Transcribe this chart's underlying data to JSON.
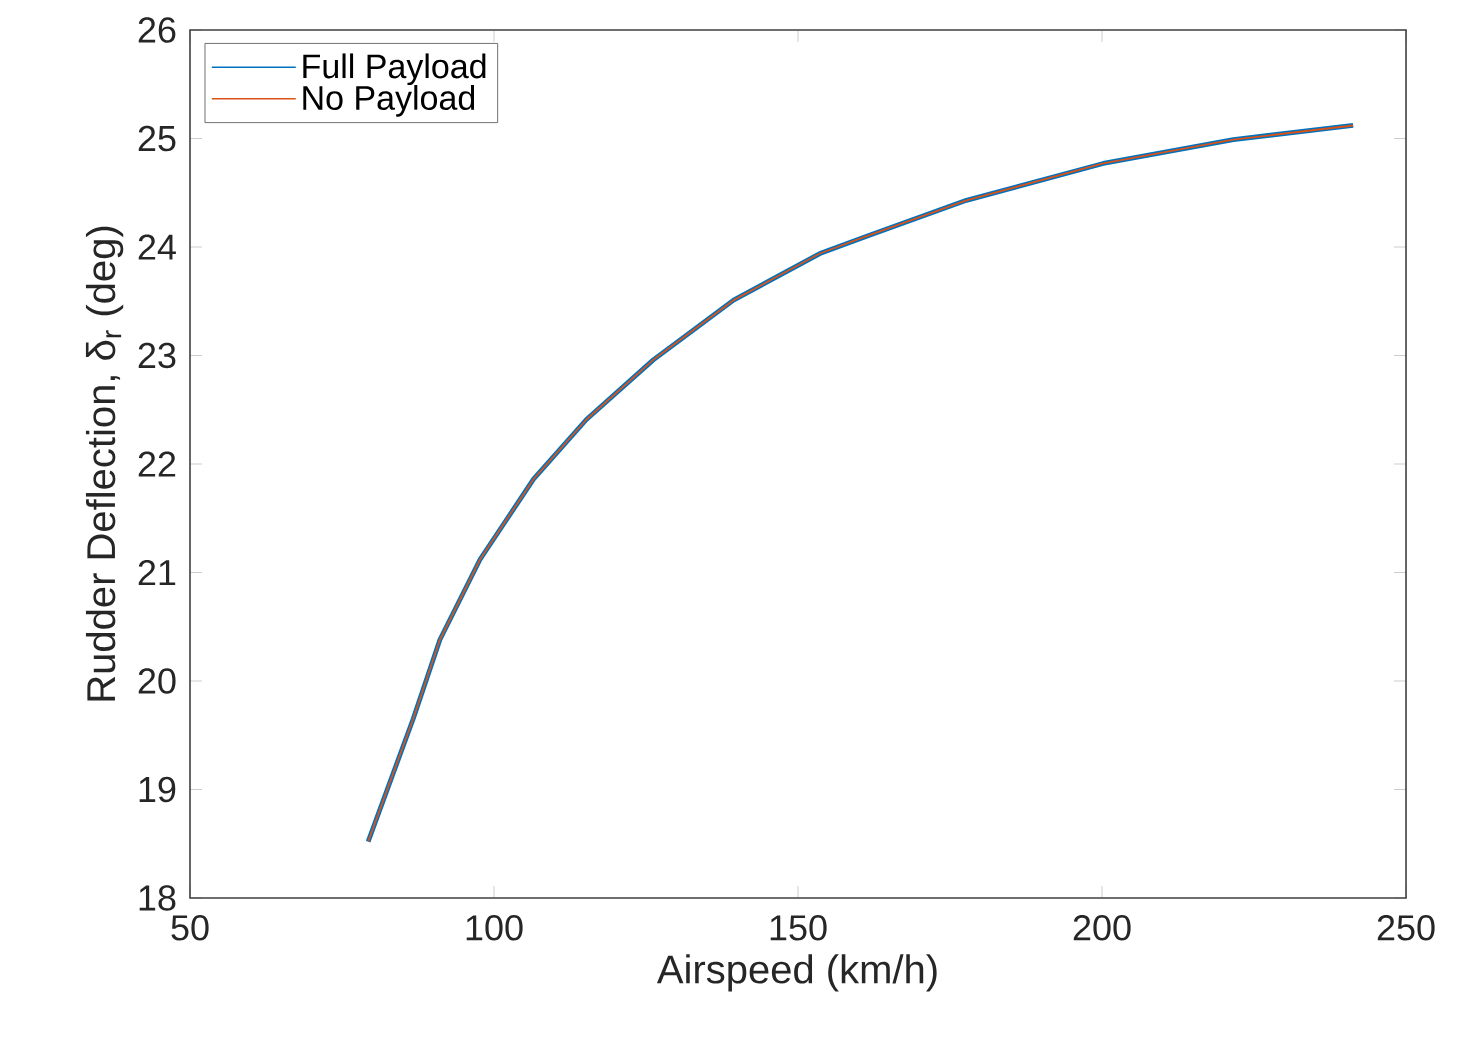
{
  "chart_data": {
    "type": "line",
    "xlabel": "Airspeed (km/h)",
    "ylabel": "Rudder Deflection, δ$_{r}$ (deg)",
    "x": [
      79.3,
      86.7,
      91.1,
      97.7,
      106.5,
      115.2,
      126.2,
      139.4,
      153.6,
      161.3,
      177.7,
      200.2,
      221.6,
      241.3
    ],
    "series": [
      {
        "name": "Full Payload",
        "color": "#0072bd",
        "values": [
          18.52,
          19.65,
          20.38,
          21.12,
          21.86,
          22.41,
          22.96,
          23.51,
          23.94,
          24.1,
          24.43,
          24.77,
          24.99,
          25.12
        ]
      },
      {
        "name": "No Payload",
        "color": "#d95319",
        "values": [
          18.52,
          19.65,
          20.38,
          21.12,
          21.86,
          22.41,
          22.96,
          23.51,
          23.94,
          24.1,
          24.43,
          24.77,
          24.99,
          25.12
        ]
      }
    ],
    "xlim": [
      50,
      250
    ],
    "xticks": [
      50,
      100,
      150,
      200,
      250
    ],
    "ylim": [
      18,
      26
    ],
    "yticks": [
      18,
      19,
      20,
      21,
      22,
      23,
      24,
      25,
      26
    ],
    "grid": false,
    "legend": "top left",
    "marker": "none",
    "line_style": "solid"
  }
}
